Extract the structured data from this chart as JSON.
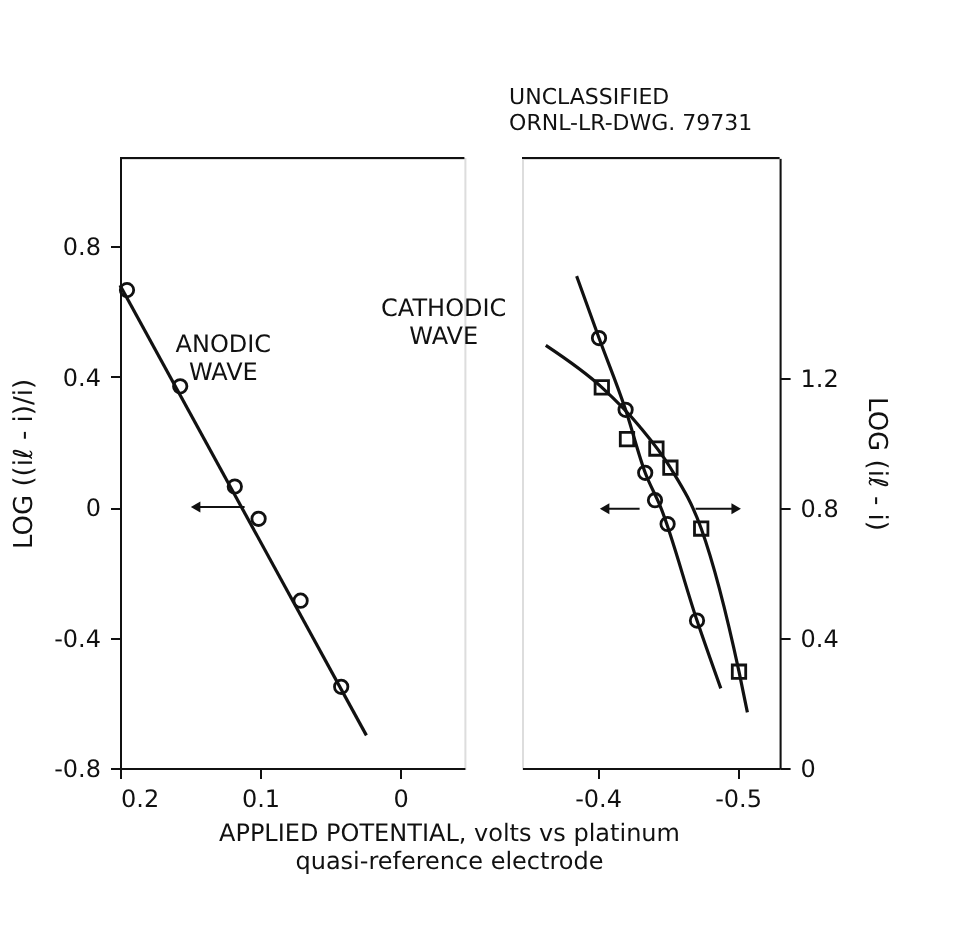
{
  "chart_data": [
    {
      "type": "scatter",
      "xlabel": "APPLIED POTENTIAL, volts vs platinum\nquasi-reference electrode",
      "ylabel": "LOG ((iℓ - i)/i)",
      "xlim": [
        0.2,
        -0.046
      ],
      "xticks": [
        0.2,
        0.1,
        0
      ],
      "ylim": [
        -0.8,
        1.07
      ],
      "yticks": [
        -0.8,
        -0.4,
        0,
        0.4,
        0.8
      ],
      "annotations": [
        "ANODIC\nWAVE",
        "CATHODIC\nWAVE"
      ],
      "series": [
        {
          "marker": "circle",
          "color": "#111111",
          "x": [
            0.195,
            0.157,
            0.118,
            0.101,
            0.071,
            0.042
          ],
          "values": [
            0.665,
            0.37,
            0.063,
            -0.036,
            -0.287,
            -0.551
          ]
        },
        {
          "type": "line",
          "color": "#111111",
          "x": [
            0.2,
            0.024
          ],
          "values": [
            0.68,
            -0.7
          ]
        }
      ]
    },
    {
      "type": "scatter",
      "y2label": "LOG (iℓ - i)",
      "xlim": [
        -0.346,
        -0.53
      ],
      "xticks": [
        -0.4,
        -0.5
      ],
      "ylim": [
        -0.8,
        1.07
      ],
      "y2lim": [
        0,
        1.875
      ],
      "y2ticks": [
        0,
        0.4,
        0.8,
        1.2
      ],
      "annotations": [
        "UNCLASSIFIED\nORNL-LR-DWG. 79731"
      ],
      "series": [
        {
          "marker": "circle",
          "color": "#111111",
          "x": [
            -0.401,
            -0.42,
            -0.434,
            -0.441,
            -0.45,
            -0.471
          ],
          "values": [
            0.518,
            0.298,
            0.105,
            0.021,
            -0.052,
            -0.348
          ]
        },
        {
          "type": "line",
          "color": "#111111",
          "x": [
            -0.385,
            -0.401,
            -0.42,
            -0.434,
            -0.445,
            -0.471,
            -0.488
          ],
          "values": [
            0.708,
            0.518,
            0.298,
            0.105,
            0.0,
            -0.348,
            -0.556
          ]
        },
        {
          "marker": "square",
          "axis": "y2",
          "color": "#111111",
          "x": [
            -0.403,
            -0.421,
            -0.442,
            -0.452,
            -0.474,
            -0.501
          ],
          "values": [
            1.17,
            1.011,
            0.982,
            0.923,
            0.736,
            0.296
          ]
        },
        {
          "type": "line",
          "axis": "y2",
          "color": "#111111",
          "x": [
            -0.363,
            -0.403,
            -0.43,
            -0.452,
            -0.474,
            -0.501,
            -0.507
          ],
          "values": [
            1.299,
            1.17,
            1.05,
            0.923,
            0.736,
            0.296,
            0.171
          ]
        }
      ]
    }
  ]
}
